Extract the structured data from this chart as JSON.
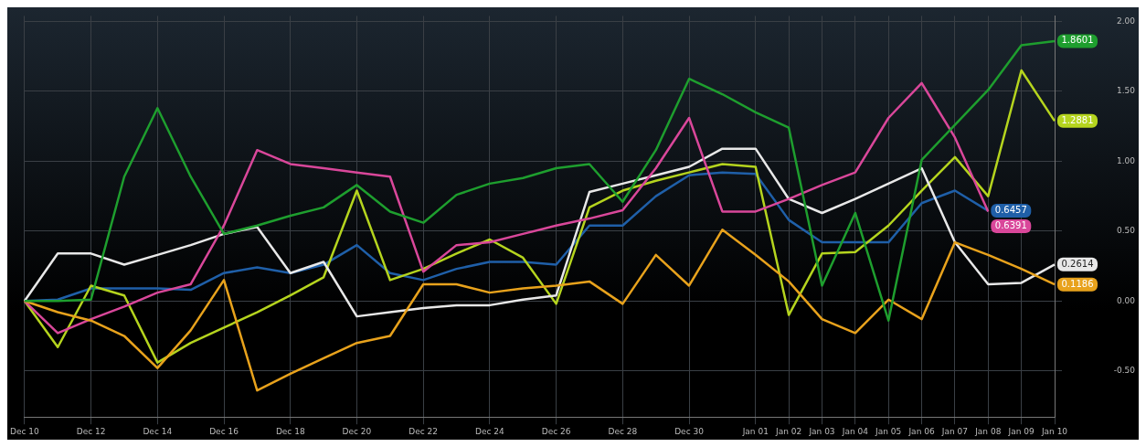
{
  "chart_data": {
    "type": "line",
    "categories": [
      "Dec 10",
      null,
      "Dec 12",
      null,
      "Dec 14",
      null,
      "Dec 16",
      null,
      "Dec 18",
      null,
      "Dec 20",
      null,
      "Dec 22",
      null,
      "Dec 24",
      null,
      "Dec 26",
      null,
      "Dec 28",
      null,
      "Dec 30",
      null,
      "Jan 01",
      "Jan 02",
      "Jan 03",
      "Jan 04",
      "Jan 05",
      "Jan 06",
      "Jan 07",
      "Jan 08",
      "Jan 09",
      "Jan 10"
    ],
    "series": [
      {
        "color": "#1e9e2e",
        "values": [
          0,
          0.0,
          0.01,
          0.89,
          1.38,
          0.89,
          0.48,
          0.54,
          0.61,
          0.67,
          0.83,
          0.64,
          0.56,
          0.76,
          0.84,
          0.88,
          0.95,
          0.98,
          0.71,
          1.08,
          1.59,
          1.48,
          1.35,
          1.24,
          0.11,
          0.63,
          -0.14,
          1.01,
          1.26,
          1.51,
          1.83,
          1.8601
        ],
        "value_labels": [
          null,
          null,
          null,
          null,
          null,
          null,
          null,
          null,
          null,
          null,
          null,
          null,
          null,
          null,
          null,
          null,
          null,
          null,
          null,
          null,
          null,
          null,
          null,
          null,
          null,
          null,
          null,
          null,
          null,
          null,
          null,
          "1.8601"
        ]
      },
      {
        "color": "#e8a21c",
        "values": [
          0,
          -0.08,
          -0.14,
          -0.25,
          -0.48,
          -0.21,
          0.15,
          -0.64,
          -0.52,
          -0.41,
          -0.3,
          -0.25,
          0.12,
          0.12,
          0.06,
          0.09,
          0.11,
          0.14,
          -0.02,
          0.33,
          0.11,
          0.51,
          0.33,
          0.14,
          -0.13,
          -0.23,
          0.01,
          -0.13,
          0.42,
          0.33,
          0.23,
          0.1186
        ],
        "value_labels": [
          null,
          null,
          null,
          null,
          null,
          null,
          null,
          null,
          null,
          null,
          null,
          null,
          null,
          null,
          null,
          null,
          null,
          null,
          null,
          null,
          null,
          null,
          null,
          null,
          null,
          null,
          null,
          null,
          null,
          null,
          null,
          "0.1186"
        ]
      },
      {
        "color": "#d9479a",
        "values": [
          0,
          -0.23,
          -0.13,
          -0.04,
          0.06,
          0.12,
          0.54,
          1.08,
          0.98,
          0.95,
          0.92,
          0.89,
          0.21,
          0.4,
          0.42,
          0.48,
          0.54,
          0.59,
          0.65,
          0.95,
          1.31,
          0.64,
          0.64,
          0.73,
          0.83,
          0.92,
          1.31,
          1.56,
          1.17,
          0.6391,
          null,
          null
        ],
        "value_labels": [
          null,
          null,
          null,
          null,
          null,
          null,
          null,
          null,
          null,
          null,
          null,
          null,
          null,
          null,
          null,
          null,
          null,
          null,
          null,
          null,
          null,
          null,
          null,
          null,
          null,
          null,
          null,
          null,
          null,
          "0.6391",
          null,
          null
        ]
      },
      {
        "color": "#e8e8e8",
        "values": [
          0,
          0.34,
          0.34,
          0.26,
          0.33,
          0.4,
          0.48,
          0.53,
          0.2,
          0.28,
          -0.11,
          -0.08,
          -0.05,
          -0.03,
          -0.03,
          0.01,
          0.04,
          0.78,
          0.84,
          0.9,
          0.96,
          1.09,
          1.09,
          0.73,
          0.63,
          0.73,
          0.84,
          0.95,
          0.42,
          0.12,
          0.13,
          0.2614
        ],
        "value_labels": [
          null,
          null,
          null,
          null,
          null,
          null,
          null,
          null,
          null,
          null,
          null,
          null,
          null,
          null,
          null,
          null,
          null,
          null,
          null,
          null,
          null,
          null,
          null,
          null,
          null,
          null,
          null,
          null,
          null,
          null,
          null,
          "0.2614"
        ]
      },
      {
        "color": "#b5d41e",
        "values": [
          0,
          -0.33,
          0.11,
          0.04,
          -0.44,
          -0.3,
          -0.19,
          -0.08,
          0.04,
          0.17,
          0.79,
          0.15,
          0.23,
          0.34,
          0.44,
          0.31,
          -0.02,
          0.67,
          0.79,
          0.86,
          0.92,
          0.98,
          0.96,
          -0.1,
          0.34,
          0.35,
          0.54,
          0.79,
          1.03,
          0.75,
          1.65,
          1.2881
        ],
        "value_labels": [
          null,
          null,
          null,
          null,
          null,
          null,
          null,
          null,
          null,
          null,
          null,
          null,
          null,
          null,
          null,
          null,
          null,
          null,
          null,
          null,
          null,
          null,
          null,
          null,
          null,
          null,
          null,
          null,
          null,
          null,
          null,
          "1.2881"
        ]
      },
      {
        "color": "#1f5fa8",
        "values": [
          0,
          0.01,
          0.09,
          0.09,
          0.09,
          0.08,
          0.2,
          0.24,
          0.2,
          0.26,
          0.4,
          0.2,
          0.15,
          0.23,
          0.28,
          0.28,
          0.26,
          0.54,
          0.54,
          0.75,
          0.9,
          0.92,
          0.91,
          0.58,
          0.42,
          0.42,
          0.42,
          0.7,
          0.79,
          0.6457,
          null,
          null
        ],
        "value_labels": [
          null,
          null,
          null,
          null,
          null,
          null,
          null,
          null,
          null,
          null,
          null,
          null,
          null,
          null,
          null,
          null,
          null,
          null,
          null,
          null,
          null,
          null,
          null,
          null,
          null,
          null,
          null,
          null,
          null,
          "0.6457",
          null,
          null
        ]
      }
    ],
    "ylim": [
      -0.83,
      2.04
    ],
    "yticks": [
      {
        "value": -0.5,
        "label": "-0.50"
      },
      {
        "value": 0,
        "label": "0.00"
      },
      {
        "value": 0.5,
        "label": "0.50"
      },
      {
        "value": 1,
        "label": "1.00"
      },
      {
        "value": 1.5,
        "label": "1.50"
      },
      {
        "value": 2,
        "label": "2.00"
      }
    ],
    "grid": true,
    "legend": false,
    "marker": "none",
    "line_style": "solid"
  }
}
